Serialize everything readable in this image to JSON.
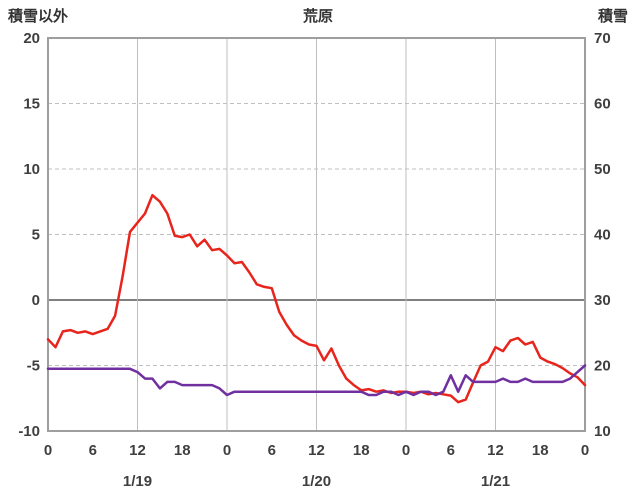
{
  "chart_data": {
    "type": "line",
    "title": "荒原",
    "left_axis": {
      "label": "積雪以外",
      "min": -10,
      "max": 20,
      "ticks": [
        -10,
        -5,
        0,
        5,
        10,
        15,
        20
      ]
    },
    "right_axis": {
      "label": "積雪",
      "min": 10,
      "max": 70,
      "ticks": [
        10,
        20,
        30,
        40,
        50,
        60,
        70
      ]
    },
    "x_axis": {
      "range_hours": [
        0,
        72
      ],
      "tick_interval_hours": 6,
      "tick_labels": [
        "0",
        "6",
        "12",
        "18",
        "0",
        "6",
        "12",
        "18",
        "0",
        "6",
        "12",
        "18",
        "0"
      ],
      "gridline_every_hours": 12,
      "day_labels": [
        {
          "label": "1/19",
          "hour": 12
        },
        {
          "label": "1/20",
          "hour": 36
        },
        {
          "label": "1/21",
          "hour": 60
        }
      ]
    },
    "colors": {
      "red": "#e8251c",
      "purple": "#7030a0",
      "grid": "#bfbfbf",
      "border": "#9e9e9e",
      "zero_line": "#808080",
      "text": "#3f3f3f"
    },
    "grid": {
      "horizontal_dashed": true,
      "vertical_solid": true,
      "zero_line_solid": true
    },
    "series": [
      {
        "id": "red-line",
        "axis": "left",
        "color": "#e8251c",
        "start_hour": 0,
        "values": [
          -3.0,
          -3.6,
          -2.4,
          -2.3,
          -2.5,
          -2.4,
          -2.6,
          -2.4,
          -2.2,
          -1.2,
          1.8,
          5.2,
          5.9,
          6.6,
          8.0,
          7.5,
          6.6,
          4.9,
          4.8,
          5.0,
          4.1,
          4.6,
          3.8,
          3.9,
          3.4,
          2.8,
          2.9,
          2.1,
          1.2,
          1.0,
          0.9,
          -0.9,
          -1.9,
          -2.7,
          -3.1,
          -3.4,
          -3.5,
          -4.6,
          -3.7,
          -5.0,
          -6.0,
          -6.5,
          -6.9,
          -6.8,
          -7.0,
          -6.9,
          -7.1,
          -7.0,
          -7.0,
          -7.1,
          -7.0,
          -7.2,
          -7.1,
          -7.2,
          -7.3,
          -7.8,
          -7.6,
          -6.3,
          -5.0,
          -4.7,
          -3.6,
          -3.9,
          -3.1,
          -2.9,
          -3.4,
          -3.2,
          -4.4,
          -4.7,
          -4.9,
          -5.2,
          -5.6,
          -5.9,
          -6.5
        ]
      },
      {
        "id": "purple-line",
        "axis": "right",
        "color": "#7030a0",
        "start_hour": 0,
        "values": [
          19.5,
          19.5,
          19.5,
          19.5,
          19.5,
          19.5,
          19.5,
          19.5,
          19.5,
          19.5,
          19.5,
          19.5,
          19.0,
          18.0,
          18.0,
          16.5,
          17.5,
          17.5,
          17.0,
          17.0,
          17.0,
          17.0,
          17.0,
          16.5,
          15.5,
          16.0,
          16.0,
          16.0,
          16.0,
          16.0,
          16.0,
          16.0,
          16.0,
          16.0,
          16.0,
          16.0,
          16.0,
          16.0,
          16.0,
          16.0,
          16.0,
          16.0,
          16.0,
          15.5,
          15.5,
          16.0,
          16.0,
          15.5,
          16.0,
          15.5,
          16.0,
          16.0,
          15.5,
          16.0,
          18.5,
          16.0,
          18.5,
          17.5,
          17.5,
          17.5,
          17.5,
          18.0,
          17.5,
          17.5,
          18.0,
          17.5,
          17.5,
          17.5,
          17.5,
          17.5,
          18.0,
          19.0,
          20.0
        ]
      }
    ]
  }
}
